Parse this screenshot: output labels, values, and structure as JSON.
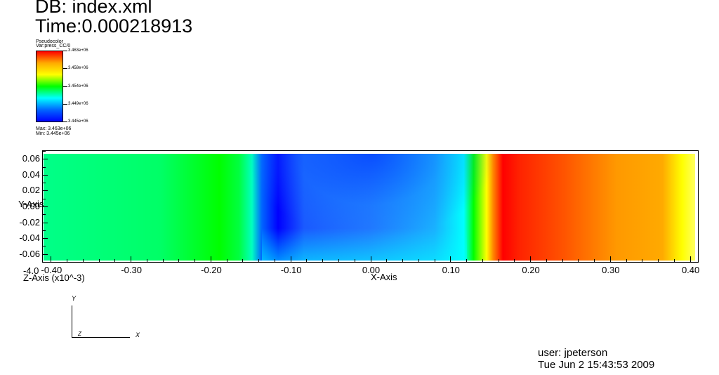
{
  "header": {
    "db_title": "DB: index.xml",
    "time_title": "Time:0.000218913"
  },
  "legend": {
    "title": "Pseudocolor",
    "var_label": "Var:press_CC/0",
    "colors": [
      "#ff0000",
      "#ffaa00",
      "#ffff00",
      "#00ff00",
      "#00ffff",
      "#0066ff",
      "#0000ff"
    ],
    "ticks": [
      "3.463e+06",
      "3.458e+06",
      "3.454e+06",
      "3.449e+06",
      "3.445e+06"
    ],
    "max_label": "Max: 3.463e+06",
    "min_label": "Min: 3.445e+06"
  },
  "chart_data": {
    "type": "heatmap",
    "xlabel": "X-Axis",
    "ylabel": "Y-Axis",
    "zlabel": "Z-Axis (x10^-3)",
    "z_overlap_label": "-4.0",
    "xlim": [
      -0.41,
      0.41
    ],
    "ylim": [
      -0.07,
      0.07
    ],
    "x_ticks": [
      -0.4,
      -0.3,
      -0.2,
      -0.1,
      0.0,
      0.1,
      0.2,
      0.3,
      0.4
    ],
    "x_tick_labels": [
      "-0.40",
      "-0.30",
      "-0.20",
      "-0.10",
      "0.00",
      "0.10",
      "0.20",
      "0.30",
      "0.40"
    ],
    "y_ticks": [
      0.06,
      0.04,
      0.02,
      0.0,
      -0.02,
      -0.04,
      -0.06
    ],
    "y_tick_labels": [
      "0.06",
      "0.04",
      "0.02",
      "0.00",
      "-0.02",
      "-0.04",
      "-0.06"
    ],
    "colorbar_range": [
      3445000,
      3463000
    ],
    "variable": "press_CC/0"
  },
  "triad": {
    "y": "Y",
    "x": "X",
    "z": "Z"
  },
  "footer": {
    "user": "user: jpeterson",
    "date": "Tue Jun  2 15:43:53 2009"
  }
}
